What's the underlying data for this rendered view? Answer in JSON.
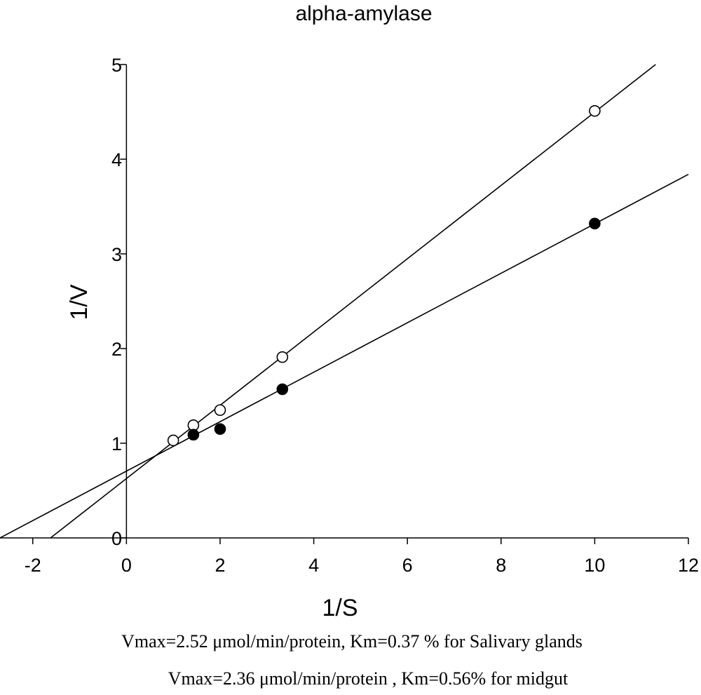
{
  "chart_data": {
    "type": "scatter",
    "title": "alpha-amylase",
    "xlabel": "1/S",
    "ylabel": "1/V",
    "xlim": [
      -2,
      12
    ],
    "ylim": [
      0,
      5
    ],
    "x_ticks": [
      "-2",
      "0",
      "2",
      "4",
      "6",
      "8",
      "10",
      "12"
    ],
    "y_ticks": [
      "0",
      "1",
      "2",
      "3",
      "4",
      "5"
    ],
    "x_tick_values": [
      -2,
      0,
      2,
      4,
      6,
      8,
      10,
      12
    ],
    "y_tick_values": [
      0,
      1,
      2,
      3,
      4,
      5
    ],
    "grid": false,
    "series": [
      {
        "marker": "open-circle",
        "points": [
          {
            "x": 1.0,
            "y": 1.03
          },
          {
            "x": 1.43,
            "y": 1.19
          },
          {
            "x": 2.0,
            "y": 1.35
          },
          {
            "x": 3.33,
            "y": 1.91
          },
          {
            "x": 10.0,
            "y": 4.51
          }
        ],
        "fit_line": {
          "x_start": -1.62,
          "y_start": 0,
          "x_end": 11.3,
          "y_end": 5.0
        }
      },
      {
        "marker": "filled-circle",
        "points": [
          {
            "x": 1.43,
            "y": 1.09
          },
          {
            "x": 2.0,
            "y": 1.15
          },
          {
            "x": 3.33,
            "y": 1.57
          },
          {
            "x": 10.0,
            "y": 3.32
          }
        ],
        "fit_line": {
          "x_start": -2.7,
          "y_start": 0,
          "x_end": 12.0,
          "y_end": 3.84
        }
      }
    ],
    "annotations": [
      "Vmax=2.52 μmol/min/protein, Km=0.37 % for Salivary glands",
      "Vmax=2.36 μmol/min/protein , Km=0.56% for midgut"
    ]
  }
}
